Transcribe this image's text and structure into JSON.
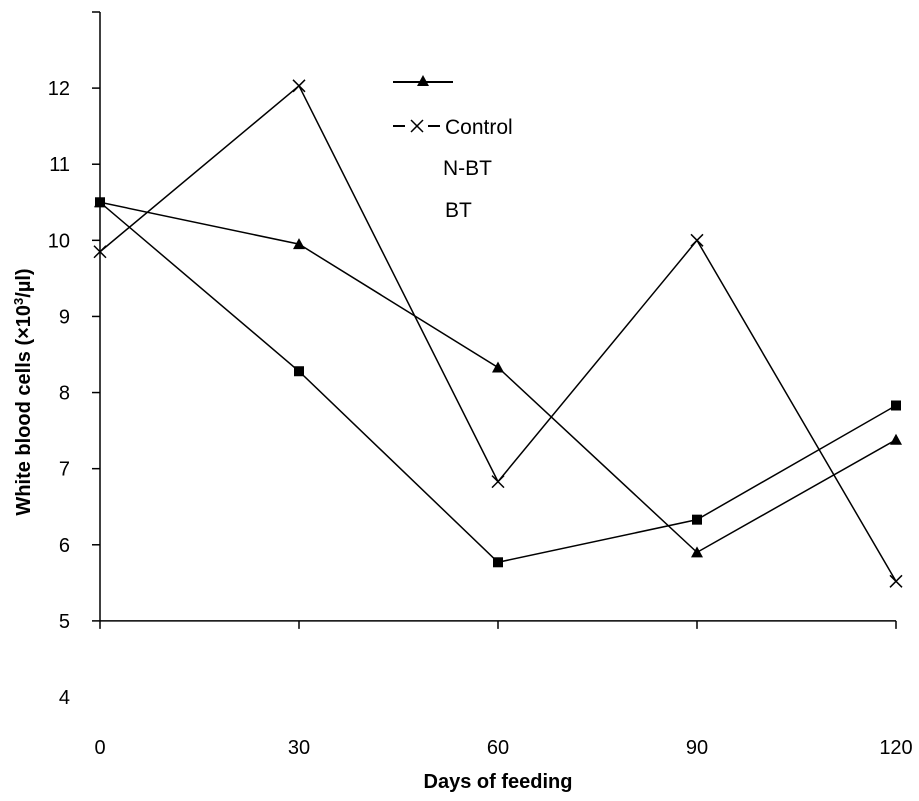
{
  "chart_data": {
    "type": "line",
    "xlabel": "Days of feeding",
    "ylabel_main": "White blood cells (×10",
    "ylabel_sup": "3",
    "ylabel_tail": "/µl)",
    "x": [
      0,
      30,
      60,
      90,
      120
    ],
    "x_ticks": [
      "0",
      "30",
      "60",
      "90",
      "120"
    ],
    "y_ticks": [
      "4",
      "5",
      "6",
      "7",
      "8",
      "9",
      "10",
      "11",
      "12"
    ],
    "ylim": [
      4,
      13
    ],
    "xlim": [
      0,
      120
    ],
    "grid": false,
    "legend_position": "top-center",
    "legend_labels": [
      "",
      "Control",
      "N-BT",
      "BT"
    ],
    "series": [
      {
        "marker": "triangle",
        "values": [
          10.5,
          9.95,
          8.33,
          5.9,
          7.38
        ]
      },
      {
        "name": "Control",
        "marker": "x",
        "values": [
          9.85,
          12.03,
          6.83,
          10.0,
          5.52
        ]
      },
      {
        "marker": "square",
        "values": [
          10.5,
          8.28,
          5.77,
          6.33,
          7.83
        ]
      }
    ]
  }
}
